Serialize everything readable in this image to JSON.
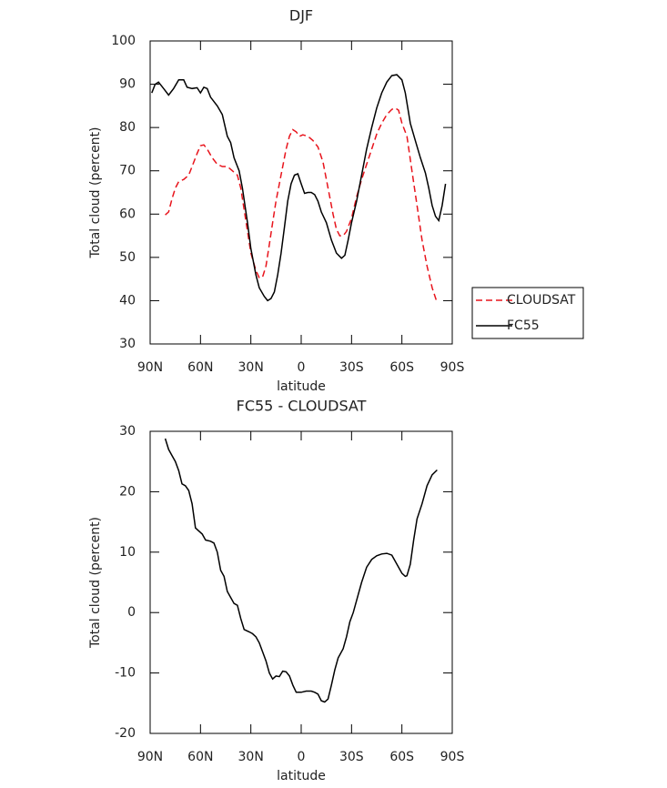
{
  "chart_data": [
    {
      "type": "line",
      "title": "DJF",
      "xlabel": "latitude",
      "ylabel": "Total cloud (percent)",
      "xlim": [
        90,
        -90
      ],
      "xticks": [
        {
          "value": 90,
          "label": "90N"
        },
        {
          "value": 60,
          "label": "60N"
        },
        {
          "value": 30,
          "label": "30N"
        },
        0,
        {
          "value": -30,
          "label": "30S"
        },
        {
          "value": -60,
          "label": "60S"
        },
        {
          "value": -90,
          "label": "90S"
        }
      ],
      "ylim": [
        30,
        100
      ],
      "yticks": [
        30,
        40,
        50,
        60,
        70,
        80,
        90,
        100
      ],
      "legend": "right",
      "series": [
        {
          "name": "CLOUDSAT",
          "color": "#e8141c",
          "dash": "dashed",
          "x": [
            81,
            79,
            77,
            75,
            73,
            70,
            67,
            65,
            62,
            60,
            58,
            56,
            53,
            50,
            47,
            44,
            41,
            38,
            36,
            34,
            32,
            30,
            27,
            25,
            23,
            21,
            19,
            17,
            15,
            13,
            11,
            9,
            7,
            5,
            3,
            1,
            -1,
            -4,
            -7,
            -10,
            -13,
            -16,
            -19,
            -21,
            -23,
            -25,
            -27,
            -30,
            -33,
            -36,
            -39,
            -42,
            -45,
            -48,
            -51,
            -54,
            -56,
            -58,
            -60,
            -63,
            -66,
            -69,
            -72,
            -75,
            -78,
            -81
          ],
          "values": [
            59.8,
            60.5,
            63.5,
            66,
            67.5,
            68,
            69,
            71,
            74,
            75.8,
            76,
            75,
            73,
            71.5,
            71,
            71,
            70,
            69,
            66,
            61,
            56,
            51,
            47,
            45.3,
            45.5,
            48,
            53,
            58,
            63,
            67,
            71,
            75,
            78,
            79.5,
            79,
            78,
            78.3,
            78,
            77,
            75.5,
            72,
            66,
            60,
            56.5,
            55,
            55,
            56,
            59,
            64,
            68,
            71.5,
            75,
            78.5,
            81,
            83,
            84.2,
            84.5,
            84,
            81,
            78,
            70,
            62,
            54,
            48,
            43,
            39.5
          ]
        },
        {
          "name": "FC55",
          "color": "#000000",
          "dash": "solid",
          "x": [
            89,
            87,
            85,
            82,
            79,
            76,
            73,
            70,
            68,
            65,
            62,
            60,
            58,
            56,
            54,
            50,
            47,
            44,
            42,
            40,
            37,
            35,
            32,
            30,
            27,
            25,
            22,
            20,
            18,
            16,
            14,
            12,
            10,
            8,
            6,
            4,
            2,
            0,
            -2,
            -4,
            -6,
            -8,
            -10,
            -12,
            -15,
            -18,
            -21,
            -24,
            -26,
            -28,
            -30,
            -33,
            -36,
            -39,
            -42,
            -45,
            -48,
            -51,
            -54,
            -57,
            -60,
            -62,
            -65,
            -68,
            -71,
            -74,
            -76,
            -78,
            -80,
            -82,
            -84,
            -86
          ],
          "values": [
            88,
            90,
            90.5,
            89,
            87.5,
            89,
            91,
            91,
            89.3,
            89,
            89.2,
            88,
            89.3,
            89,
            87,
            85,
            83,
            78,
            76.5,
            73,
            70,
            66,
            58,
            52,
            46,
            43,
            41,
            40,
            40.5,
            42,
            46,
            51,
            57,
            63,
            67,
            69,
            69.3,
            67,
            64.8,
            65,
            65,
            64.5,
            63,
            60.5,
            58,
            54,
            51,
            49.8,
            50.5,
            54,
            58,
            63,
            69,
            75,
            80,
            84.5,
            88,
            90.5,
            92,
            92.2,
            91,
            88,
            81,
            77,
            73,
            69.5,
            66,
            62,
            59.5,
            58.5,
            62,
            67
          ]
        }
      ]
    },
    {
      "type": "line",
      "title": "FC55 - CLOUDSAT",
      "xlabel": "latitude",
      "ylabel": "Total cloud (percent)",
      "xlim": [
        90,
        -90
      ],
      "xticks": [
        {
          "value": 90,
          "label": "90N"
        },
        {
          "value": 60,
          "label": "60N"
        },
        {
          "value": 30,
          "label": "30N"
        },
        0,
        {
          "value": -30,
          "label": "30S"
        },
        {
          "value": -60,
          "label": "60S"
        },
        {
          "value": -90,
          "label": "90S"
        }
      ],
      "ylim": [
        -20,
        30
      ],
      "yticks": [
        -20,
        -10,
        0,
        10,
        20,
        30
      ],
      "series": [
        {
          "color": "#000000",
          "dash": "solid",
          "x": [
            81,
            79,
            77,
            75,
            73,
            71,
            69,
            67,
            65,
            63,
            61,
            59,
            57,
            54,
            52,
            50,
            48,
            46,
            44,
            42,
            40,
            38,
            36,
            34,
            31,
            29,
            27,
            25,
            23,
            21,
            19,
            17,
            15,
            13,
            11,
            9,
            7,
            5,
            3,
            0,
            -3,
            -6,
            -8,
            -10,
            -12,
            -14,
            -16,
            -18,
            -20,
            -22,
            -25,
            -27,
            -29,
            -31,
            -34,
            -36,
            -39,
            -42,
            -45,
            -48,
            -51,
            -54,
            -56,
            -58,
            -60,
            -62,
            -63,
            -65,
            -67,
            -69,
            -72,
            -75,
            -78,
            -81
          ],
          "values": [
            28.8,
            27,
            26,
            25,
            23.5,
            21.3,
            21,
            20.2,
            18,
            14,
            13.5,
            13,
            12,
            11.8,
            11.5,
            10,
            7,
            6,
            3.5,
            2.5,
            1.5,
            1.2,
            -1,
            -2.8,
            -3.2,
            -3.5,
            -4,
            -5,
            -6.5,
            -8,
            -10,
            -11,
            -10.5,
            -10.6,
            -9.7,
            -9.8,
            -10.5,
            -12,
            -13.2,
            -13.2,
            -13,
            -13,
            -13.2,
            -13.5,
            -14.6,
            -14.8,
            -14.3,
            -12,
            -9.5,
            -7.5,
            -6,
            -4,
            -1.5,
            0,
            3,
            5,
            7.5,
            8.8,
            9.4,
            9.7,
            9.8,
            9.5,
            8.5,
            7.5,
            6.5,
            6,
            6.1,
            8,
            12,
            15.5,
            18,
            21,
            22.8,
            23.6
          ]
        }
      ]
    }
  ]
}
